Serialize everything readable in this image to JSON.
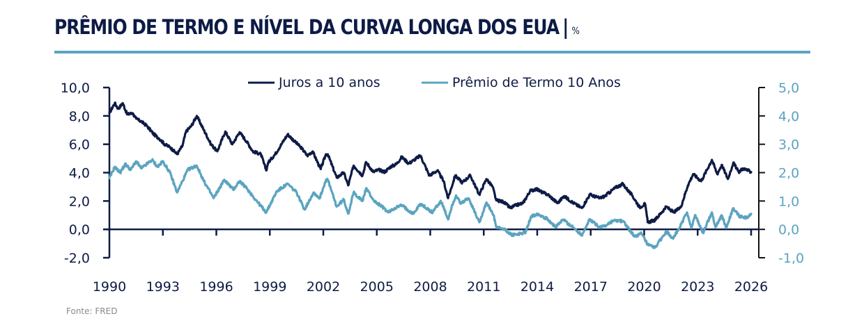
{
  "title": {
    "main": "PRÊMIO DE TERMO E NÍVEL DA CURVA LONGA DOS EUA",
    "separator": "|",
    "unit": "%"
  },
  "source": "Fonte: FRED",
  "colors": {
    "title": "#0d1b45",
    "rule": "#5ba4c0",
    "yield": "#0d1b45",
    "term_premium": "#5ba4c0",
    "source": "#8a8a8a"
  },
  "chart_data": {
    "type": "line",
    "title": "PRÊMIO DE TERMO E NÍVEL DA CURVA LONGA DOS EUA | %",
    "xlabel": "",
    "ylabel": "",
    "xlim": [
      1990,
      2026
    ],
    "x_ticks": [
      "1990",
      "1993",
      "1996",
      "1999",
      "2002",
      "2005",
      "2008",
      "2011",
      "2014",
      "2017",
      "2020",
      "2023",
      "2026"
    ],
    "y_left": {
      "lim": [
        -2,
        10
      ],
      "ticks": [
        "10,0",
        "8,0",
        "6,0",
        "4,0",
        "2,0",
        "0,0",
        "-2,0"
      ],
      "tick_values": [
        10,
        8,
        6,
        4,
        2,
        0,
        -2
      ]
    },
    "y_right": {
      "lim": [
        -1,
        5
      ],
      "ticks": [
        "5,0",
        "4,0",
        "3,0",
        "2,0",
        "1,0",
        "0,0",
        "-1,0"
      ],
      "tick_values": [
        5,
        4,
        3,
        2,
        1,
        0,
        -1
      ]
    },
    "grid": false,
    "legend": {
      "placement": "top-center",
      "entries": [
        "Juros a 10 anos",
        "Prêmio de Termo 10 Anos"
      ]
    },
    "series": [
      {
        "name": "Juros a 10 anos",
        "axis": "left",
        "x": [
          1990.0,
          1990.3,
          1990.5,
          1990.75,
          1991.0,
          1991.3,
          1991.5,
          1991.8,
          1992.1,
          1992.5,
          1992.8,
          1993.1,
          1993.4,
          1993.8,
          1994.1,
          1994.3,
          1994.6,
          1994.9,
          1995.3,
          1995.7,
          1996.05,
          1996.5,
          1996.9,
          1997.3,
          1997.7,
          1998.05,
          1998.5,
          1998.8,
          1998.9,
          1999.3,
          1999.7,
          2000.0,
          2000.4,
          2000.8,
          2001.1,
          2001.4,
          2001.85,
          2002.15,
          2002.25,
          2002.75,
          2003.15,
          2003.4,
          2003.7,
          2004.2,
          2004.4,
          2004.8,
          2005.1,
          2005.45,
          2005.75,
          2006.1,
          2006.4,
          2006.8,
          2007.1,
          2007.45,
          2007.95,
          2008.4,
          2008.75,
          2009.0,
          2009.4,
          2009.8,
          2010.25,
          2010.75,
          2011.15,
          2011.5,
          2011.7,
          2012.1,
          2012.5,
          2012.8,
          2013.2,
          2013.6,
          2013.95,
          2014.3,
          2014.6,
          2015.15,
          2015.5,
          2016.05,
          2016.5,
          2016.95,
          2017.5,
          2017.8,
          2018.4,
          2018.8,
          2019.35,
          2019.75,
          2020.05,
          2020.2,
          2020.6,
          2021.25,
          2021.65,
          2022.05,
          2022.45,
          2022.75,
          2023.2,
          2023.8,
          2024.1,
          2024.35,
          2024.7,
          2025.0,
          2025.3,
          2025.55,
          2026.0
        ],
        "values": [
          8.2,
          8.9,
          8.5,
          8.9,
          8.1,
          8.2,
          7.8,
          7.6,
          7.3,
          6.7,
          6.4,
          6.0,
          5.8,
          5.3,
          5.9,
          6.9,
          7.3,
          8.0,
          7.0,
          6.0,
          5.5,
          6.9,
          6.0,
          6.85,
          6.2,
          5.5,
          5.3,
          4.15,
          4.7,
          5.3,
          6.1,
          6.7,
          6.2,
          5.7,
          5.2,
          5.5,
          4.25,
          5.3,
          5.3,
          3.65,
          4.0,
          3.1,
          4.5,
          3.8,
          4.75,
          4.05,
          4.2,
          4.05,
          4.4,
          4.6,
          5.1,
          4.65,
          4.9,
          5.2,
          3.8,
          4.15,
          3.4,
          2.2,
          3.8,
          3.3,
          3.8,
          2.45,
          3.55,
          3.0,
          2.05,
          1.95,
          1.5,
          1.7,
          1.85,
          2.7,
          2.85,
          2.6,
          2.45,
          1.85,
          2.35,
          1.85,
          1.5,
          2.45,
          2.2,
          2.35,
          2.95,
          3.2,
          2.35,
          1.55,
          1.8,
          0.5,
          0.65,
          1.6,
          1.2,
          1.55,
          3.1,
          3.9,
          3.4,
          4.9,
          3.9,
          4.55,
          3.55,
          4.7,
          4.05,
          4.3,
          4.05
        ]
      },
      {
        "name": "Prêmio de Termo 10 Anos",
        "axis": "right",
        "x": [
          1990.0,
          1990.3,
          1990.6,
          1990.9,
          1991.2,
          1991.5,
          1991.8,
          1992.1,
          1992.4,
          1992.7,
          1993.0,
          1993.4,
          1993.8,
          1994.1,
          1994.4,
          1994.9,
          1995.3,
          1995.85,
          1996.45,
          1996.95,
          1997.3,
          1997.7,
          1998.2,
          1998.8,
          1999.4,
          2000.0,
          2000.5,
          2000.95,
          2001.45,
          2001.8,
          2002.15,
          2002.25,
          2002.75,
          2003.15,
          2003.4,
          2003.7,
          2004.2,
          2004.4,
          2004.85,
          2005.3,
          2005.65,
          2006.0,
          2006.4,
          2007.05,
          2007.45,
          2008.1,
          2008.6,
          2009.0,
          2009.2,
          2009.45,
          2009.7,
          2010.15,
          2010.75,
          2011.15,
          2011.55,
          2011.7,
          2012.15,
          2012.6,
          2013.05,
          2013.35,
          2013.65,
          2014.05,
          2014.6,
          2015.05,
          2015.45,
          2016.05,
          2016.5,
          2016.95,
          2017.5,
          2017.8,
          2018.25,
          2018.8,
          2019.45,
          2019.85,
          2020.2,
          2020.6,
          2021.25,
          2021.6,
          2021.9,
          2022.4,
          2022.65,
          2022.85,
          2023.3,
          2023.8,
          2024.0,
          2024.35,
          2024.6,
          2025.0,
          2025.35,
          2025.8,
          2026.0
        ],
        "values": [
          1.8,
          2.2,
          2.0,
          2.3,
          2.1,
          2.4,
          2.15,
          2.3,
          2.45,
          2.2,
          2.4,
          2.0,
          1.3,
          1.7,
          2.1,
          2.25,
          1.7,
          1.1,
          1.75,
          1.4,
          1.7,
          1.45,
          1.05,
          0.6,
          1.35,
          1.6,
          1.3,
          0.7,
          1.3,
          1.1,
          1.75,
          1.75,
          0.8,
          1.05,
          0.55,
          1.3,
          1.0,
          1.45,
          1.0,
          0.8,
          0.6,
          0.75,
          0.85,
          0.55,
          0.9,
          0.6,
          1.0,
          0.35,
          0.8,
          1.2,
          0.9,
          1.1,
          0.25,
          0.95,
          0.5,
          0.08,
          0.0,
          -0.2,
          -0.15,
          -0.1,
          0.45,
          0.55,
          0.35,
          0.08,
          0.35,
          0.05,
          -0.2,
          0.35,
          0.08,
          0.12,
          0.3,
          0.3,
          -0.25,
          -0.15,
          -0.55,
          -0.65,
          -0.08,
          -0.3,
          -0.05,
          0.6,
          0.05,
          0.5,
          -0.12,
          0.6,
          0.08,
          0.5,
          0.05,
          0.75,
          0.45,
          0.4,
          0.55
        ]
      }
    ]
  }
}
